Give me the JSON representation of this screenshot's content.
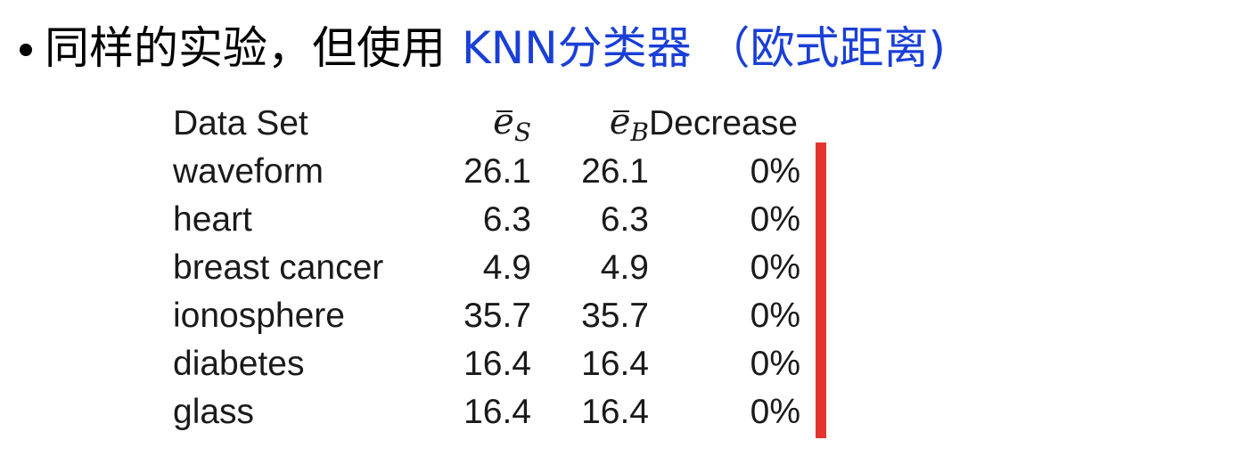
{
  "title": {
    "prefix": "同样的实验，但使用",
    "highlight": "KNN分类器 （欧式距离)"
  },
  "table": {
    "headers": {
      "name": "Data Set",
      "e_s_symbol": "e",
      "e_s_subscript": "S",
      "e_b_symbol": "e",
      "e_b_subscript": "B",
      "decrease": "Decrease"
    },
    "rows": [
      {
        "name": "waveform",
        "e_s": "26.1",
        "e_b": "26.1",
        "decrease": "0%"
      },
      {
        "name": "heart",
        "e_s": "6.3",
        "e_b": "6.3",
        "decrease": "0%"
      },
      {
        "name": "breast cancer",
        "e_s": "4.9",
        "e_b": "4.9",
        "decrease": "0%"
      },
      {
        "name": "ionosphere",
        "e_s": "35.7",
        "e_b": "35.7",
        "decrease": "0%"
      },
      {
        "name": "diabetes",
        "e_s": "16.4",
        "e_b": "16.4",
        "decrease": "0%"
      },
      {
        "name": "glass",
        "e_s": "16.4",
        "e_b": "16.4",
        "decrease": "0%"
      }
    ]
  },
  "colors": {
    "highlight_text": "#1a3fd6",
    "marker_bar": "#e3342f"
  }
}
